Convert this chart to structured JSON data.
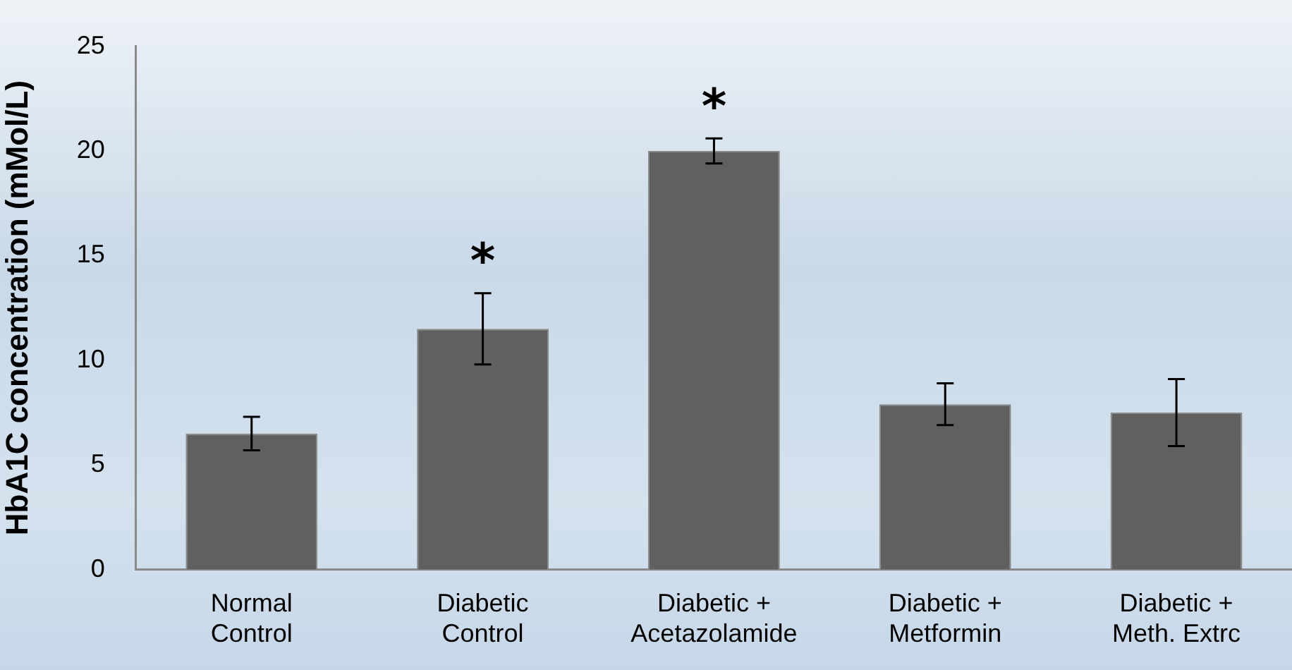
{
  "chart_data": {
    "type": "bar",
    "ylabel": "HbA1C concentration (mMol/L)",
    "categories": [
      "Normal\nControl",
      "Diabetic\nControl",
      "Diabetic +\nAcetazolamide",
      "Diabetic +\nMetformin",
      "Diabetic +\nMeth. Extrc"
    ],
    "values": [
      6.5,
      11.5,
      20.0,
      7.9,
      7.5
    ],
    "errors": [
      0.8,
      1.7,
      0.6,
      1.0,
      1.6
    ],
    "color": "#606060",
    "ylim": [
      0,
      25
    ],
    "yticks": [
      0,
      5,
      10,
      15,
      20,
      25
    ],
    "grid": false,
    "legend": false,
    "annotations": [
      {
        "text": "*",
        "x": "Diabetic\nControl",
        "y": 11.5
      },
      {
        "text": "*",
        "x": "Diabetic +\nAcetazolamide",
        "y": 20.0
      }
    ]
  }
}
